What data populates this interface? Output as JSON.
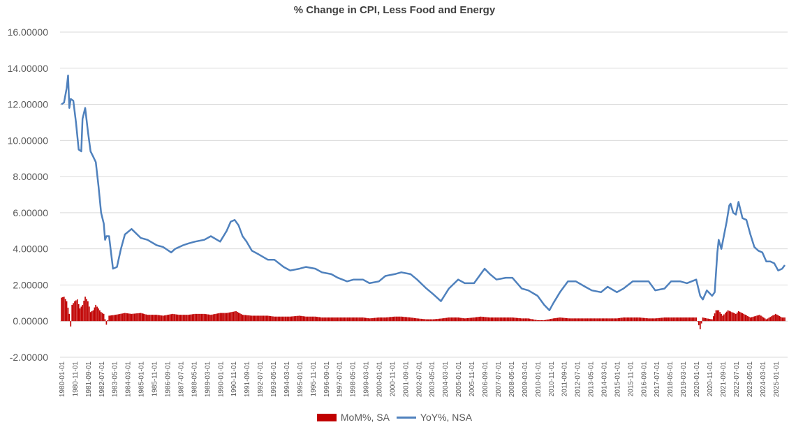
{
  "chart_data": {
    "type": "bar+line",
    "title": "% Change in CPI, Less Food and Energy",
    "xlabel": "",
    "ylabel": "",
    "ylim": [
      -2,
      16
    ],
    "y_ticks": [
      "16.00000",
      "14.00000",
      "12.00000",
      "10.00000",
      "8.00000",
      "6.00000",
      "4.00000",
      "2.00000",
      "0.00000",
      "-2.00000"
    ],
    "grid": true,
    "legend_placement": "bottom",
    "x_tick_labels": [
      "1980-01-01",
      "1980-11-01",
      "1981-09-01",
      "1982-07-01",
      "1983-05-01",
      "1984-03-01",
      "1985-01-01",
      "1985-11-01",
      "1986-09-01",
      "1987-07-01",
      "1988-05-01",
      "1989-03-01",
      "1990-01-01",
      "1990-11-01",
      "1991-09-01",
      "1992-07-01",
      "1993-05-01",
      "1994-03-01",
      "1995-01-01",
      "1995-11-01",
      "1996-09-01",
      "1997-07-01",
      "1998-05-01",
      "1999-03-01",
      "2000-01-01",
      "2000-11-01",
      "2001-09-01",
      "2002-07-01",
      "2003-05-01",
      "2004-03-01",
      "2005-01-01",
      "2005-11-01",
      "2006-09-01",
      "2007-07-01",
      "2008-05-01",
      "2009-03-01",
      "2010-01-01",
      "2010-11-01",
      "2011-09-01",
      "2012-07-01",
      "2013-05-01",
      "2014-03-01",
      "2015-01-01",
      "2015-11-01",
      "2016-09-01",
      "2017-07-01",
      "2018-05-01",
      "2019-03-01",
      "2020-01-01",
      "2020-11-01",
      "2021-09-01",
      "2022-07-01",
      "2023-05-01",
      "2024-03-01",
      "2025-01-01"
    ],
    "series": [
      {
        "name": "MoM%, SA",
        "kind": "bar",
        "color": "#c00000",
        "points": [
          [
            "1980-01-01",
            1.3
          ],
          [
            "1980-03-01",
            1.35
          ],
          [
            "1980-05-01",
            1.1
          ],
          [
            "1980-07-01",
            0.4
          ],
          [
            "1980-08-01",
            -0.3
          ],
          [
            "1980-09-01",
            0.9
          ],
          [
            "1980-11-01",
            1.1
          ],
          [
            "1981-01-01",
            1.2
          ],
          [
            "1981-03-01",
            0.7
          ],
          [
            "1981-05-01",
            0.9
          ],
          [
            "1981-07-01",
            1.35
          ],
          [
            "1981-09-01",
            1.1
          ],
          [
            "1981-11-01",
            0.5
          ],
          [
            "1982-01-01",
            0.6
          ],
          [
            "1982-03-01",
            0.9
          ],
          [
            "1982-05-01",
            0.7
          ],
          [
            "1982-07-01",
            0.5
          ],
          [
            "1982-09-01",
            0.4
          ],
          [
            "1982-11-01",
            -0.2
          ],
          [
            "1983-01-01",
            0.3
          ],
          [
            "1983-06-01",
            0.35
          ],
          [
            "1984-01-01",
            0.45
          ],
          [
            "1984-06-01",
            0.4
          ],
          [
            "1985-01-01",
            0.45
          ],
          [
            "1985-06-01",
            0.35
          ],
          [
            "1986-01-01",
            0.35
          ],
          [
            "1986-06-01",
            0.3
          ],
          [
            "1987-01-01",
            0.4
          ],
          [
            "1987-06-01",
            0.35
          ],
          [
            "1988-01-01",
            0.35
          ],
          [
            "1988-06-01",
            0.4
          ],
          [
            "1989-01-01",
            0.4
          ],
          [
            "1989-06-01",
            0.35
          ],
          [
            "1990-01-01",
            0.45
          ],
          [
            "1990-06-01",
            0.45
          ],
          [
            "1991-01-01",
            0.55
          ],
          [
            "1991-06-01",
            0.35
          ],
          [
            "1992-01-01",
            0.3
          ],
          [
            "1992-06-01",
            0.3
          ],
          [
            "1993-01-01",
            0.3
          ],
          [
            "1993-06-01",
            0.25
          ],
          [
            "1994-01-01",
            0.25
          ],
          [
            "1994-06-01",
            0.25
          ],
          [
            "1995-01-01",
            0.3
          ],
          [
            "1995-06-01",
            0.25
          ],
          [
            "1996-01-01",
            0.25
          ],
          [
            "1996-06-01",
            0.2
          ],
          [
            "1997-01-01",
            0.2
          ],
          [
            "1997-06-01",
            0.2
          ],
          [
            "1998-01-01",
            0.2
          ],
          [
            "1998-06-01",
            0.2
          ],
          [
            "1999-01-01",
            0.2
          ],
          [
            "1999-06-01",
            0.15
          ],
          [
            "2000-01-01",
            0.2
          ],
          [
            "2000-06-01",
            0.2
          ],
          [
            "2001-01-01",
            0.25
          ],
          [
            "2001-06-01",
            0.25
          ],
          [
            "2002-01-01",
            0.2
          ],
          [
            "2002-06-01",
            0.15
          ],
          [
            "2003-01-01",
            0.1
          ],
          [
            "2003-06-01",
            0.1
          ],
          [
            "2004-01-01",
            0.15
          ],
          [
            "2004-06-01",
            0.2
          ],
          [
            "2005-01-01",
            0.2
          ],
          [
            "2005-06-01",
            0.15
          ],
          [
            "2006-01-01",
            0.2
          ],
          [
            "2006-06-01",
            0.25
          ],
          [
            "2007-01-01",
            0.2
          ],
          [
            "2007-06-01",
            0.2
          ],
          [
            "2008-01-01",
            0.2
          ],
          [
            "2008-06-01",
            0.2
          ],
          [
            "2009-01-01",
            0.15
          ],
          [
            "2009-06-01",
            0.15
          ],
          [
            "2010-01-01",
            0.05
          ],
          [
            "2010-06-01",
            0.05
          ],
          [
            "2011-01-01",
            0.15
          ],
          [
            "2011-06-01",
            0.2
          ],
          [
            "2012-01-01",
            0.15
          ],
          [
            "2012-06-01",
            0.15
          ],
          [
            "2013-01-01",
            0.15
          ],
          [
            "2013-06-01",
            0.15
          ],
          [
            "2014-01-01",
            0.15
          ],
          [
            "2014-06-01",
            0.15
          ],
          [
            "2015-01-01",
            0.15
          ],
          [
            "2015-06-01",
            0.2
          ],
          [
            "2016-01-01",
            0.2
          ],
          [
            "2016-06-01",
            0.2
          ],
          [
            "2017-01-01",
            0.15
          ],
          [
            "2017-06-01",
            0.15
          ],
          [
            "2018-01-01",
            0.2
          ],
          [
            "2018-06-01",
            0.2
          ],
          [
            "2019-01-01",
            0.2
          ],
          [
            "2019-06-01",
            0.2
          ],
          [
            "2020-01-01",
            0.2
          ],
          [
            "2020-04-01",
            -0.45
          ],
          [
            "2020-06-01",
            0.2
          ],
          [
            "2020-09-01",
            0.15
          ],
          [
            "2021-01-01",
            0.1
          ],
          [
            "2021-04-01",
            0.6
          ],
          [
            "2021-06-01",
            0.6
          ],
          [
            "2021-09-01",
            0.3
          ],
          [
            "2022-01-01",
            0.6
          ],
          [
            "2022-04-01",
            0.5
          ],
          [
            "2022-07-01",
            0.4
          ],
          [
            "2022-09-01",
            0.55
          ],
          [
            "2023-01-01",
            0.4
          ],
          [
            "2023-06-01",
            0.2
          ],
          [
            "2024-01-01",
            0.35
          ],
          [
            "2024-06-01",
            0.1
          ],
          [
            "2025-01-01",
            0.4
          ],
          [
            "2025-06-01",
            0.2
          ]
        ]
      },
      {
        "name": "YoY%, NSA",
        "kind": "line",
        "color": "#4f81bd",
        "points": [
          [
            "1980-01-01",
            12.0
          ],
          [
            "1980-03-01",
            12.1
          ],
          [
            "1980-05-01",
            12.9
          ],
          [
            "1980-06-01",
            13.6
          ],
          [
            "1980-07-01",
            11.8
          ],
          [
            "1980-08-01",
            12.3
          ],
          [
            "1980-10-01",
            12.2
          ],
          [
            "1980-12-01",
            11.0
          ],
          [
            "1981-02-01",
            9.5
          ],
          [
            "1981-04-01",
            9.4
          ],
          [
            "1981-05-01",
            11.2
          ],
          [
            "1981-07-01",
            11.8
          ],
          [
            "1981-09-01",
            10.5
          ],
          [
            "1981-11-01",
            9.4
          ],
          [
            "1982-01-01",
            9.1
          ],
          [
            "1982-03-01",
            8.8
          ],
          [
            "1982-05-01",
            7.5
          ],
          [
            "1982-07-01",
            6.0
          ],
          [
            "1982-09-01",
            5.4
          ],
          [
            "1982-10-01",
            4.5
          ],
          [
            "1982-11-01",
            4.7
          ],
          [
            "1983-01-01",
            4.7
          ],
          [
            "1983-04-01",
            2.9
          ],
          [
            "1983-07-01",
            3.0
          ],
          [
            "1983-10-01",
            4.0
          ],
          [
            "1984-01-01",
            4.8
          ],
          [
            "1984-06-01",
            5.1
          ],
          [
            "1985-01-01",
            4.6
          ],
          [
            "1985-06-01",
            4.5
          ],
          [
            "1986-01-01",
            4.2
          ],
          [
            "1986-06-01",
            4.1
          ],
          [
            "1986-12-01",
            3.8
          ],
          [
            "1987-03-01",
            4.0
          ],
          [
            "1987-06-01",
            4.1
          ],
          [
            "1987-09-01",
            4.2
          ],
          [
            "1988-01-01",
            4.3
          ],
          [
            "1988-06-01",
            4.4
          ],
          [
            "1989-01-01",
            4.5
          ],
          [
            "1989-06-01",
            4.7
          ],
          [
            "1990-01-01",
            4.4
          ],
          [
            "1990-06-01",
            5.0
          ],
          [
            "1990-09-01",
            5.5
          ],
          [
            "1990-12-01",
            5.6
          ],
          [
            "1991-03-01",
            5.3
          ],
          [
            "1991-06-01",
            4.7
          ],
          [
            "1991-09-01",
            4.4
          ],
          [
            "1992-01-01",
            3.9
          ],
          [
            "1992-06-01",
            3.7
          ],
          [
            "1993-01-01",
            3.4
          ],
          [
            "1993-06-01",
            3.4
          ],
          [
            "1994-01-01",
            3.0
          ],
          [
            "1994-06-01",
            2.8
          ],
          [
            "1995-01-01",
            2.9
          ],
          [
            "1995-06-01",
            3.0
          ],
          [
            "1996-01-01",
            2.9
          ],
          [
            "1996-06-01",
            2.7
          ],
          [
            "1997-01-01",
            2.6
          ],
          [
            "1997-06-01",
            2.4
          ],
          [
            "1998-01-01",
            2.2
          ],
          [
            "1998-06-01",
            2.3
          ],
          [
            "1999-01-01",
            2.3
          ],
          [
            "1999-06-01",
            2.1
          ],
          [
            "2000-01-01",
            2.2
          ],
          [
            "2000-06-01",
            2.5
          ],
          [
            "2001-01-01",
            2.6
          ],
          [
            "2001-06-01",
            2.7
          ],
          [
            "2002-01-01",
            2.6
          ],
          [
            "2002-06-01",
            2.3
          ],
          [
            "2003-01-01",
            1.8
          ],
          [
            "2003-06-01",
            1.5
          ],
          [
            "2003-12-01",
            1.1
          ],
          [
            "2004-06-01",
            1.8
          ],
          [
            "2005-01-01",
            2.3
          ],
          [
            "2005-06-01",
            2.1
          ],
          [
            "2006-01-01",
            2.1
          ],
          [
            "2006-06-01",
            2.6
          ],
          [
            "2006-09-01",
            2.9
          ],
          [
            "2007-01-01",
            2.6
          ],
          [
            "2007-06-01",
            2.3
          ],
          [
            "2008-01-01",
            2.4
          ],
          [
            "2008-06-01",
            2.4
          ],
          [
            "2009-01-01",
            1.8
          ],
          [
            "2009-06-01",
            1.7
          ],
          [
            "2010-01-01",
            1.4
          ],
          [
            "2010-06-01",
            0.9
          ],
          [
            "2010-10-01",
            0.6
          ],
          [
            "2011-01-01",
            1.0
          ],
          [
            "2011-06-01",
            1.6
          ],
          [
            "2011-12-01",
            2.2
          ],
          [
            "2012-06-01",
            2.2
          ],
          [
            "2013-01-01",
            1.9
          ],
          [
            "2013-06-01",
            1.7
          ],
          [
            "2014-01-01",
            1.6
          ],
          [
            "2014-06-01",
            1.9
          ],
          [
            "2015-01-01",
            1.6
          ],
          [
            "2015-06-01",
            1.8
          ],
          [
            "2016-01-01",
            2.2
          ],
          [
            "2016-06-01",
            2.2
          ],
          [
            "2017-01-01",
            2.2
          ],
          [
            "2017-06-01",
            1.7
          ],
          [
            "2018-01-01",
            1.8
          ],
          [
            "2018-06-01",
            2.2
          ],
          [
            "2019-01-01",
            2.2
          ],
          [
            "2019-06-01",
            2.1
          ],
          [
            "2020-01-01",
            2.3
          ],
          [
            "2020-04-01",
            1.4
          ],
          [
            "2020-06-01",
            1.2
          ],
          [
            "2020-09-01",
            1.7
          ],
          [
            "2021-01-01",
            1.4
          ],
          [
            "2021-03-01",
            1.6
          ],
          [
            "2021-05-01",
            3.8
          ],
          [
            "2021-06-01",
            4.5
          ],
          [
            "2021-08-01",
            4.0
          ],
          [
            "2021-12-01",
            5.5
          ],
          [
            "2022-02-01",
            6.4
          ],
          [
            "2022-03-01",
            6.5
          ],
          [
            "2022-05-01",
            6.0
          ],
          [
            "2022-07-01",
            5.9
          ],
          [
            "2022-09-01",
            6.6
          ],
          [
            "2022-12-01",
            5.7
          ],
          [
            "2023-03-01",
            5.6
          ],
          [
            "2023-06-01",
            4.8
          ],
          [
            "2023-09-01",
            4.1
          ],
          [
            "2023-12-01",
            3.9
          ],
          [
            "2024-03-01",
            3.8
          ],
          [
            "2024-06-01",
            3.3
          ],
          [
            "2024-09-01",
            3.3
          ],
          [
            "2024-12-01",
            3.2
          ],
          [
            "2025-03-01",
            2.8
          ],
          [
            "2025-06-01",
            2.9
          ],
          [
            "2025-08-01",
            3.1
          ]
        ]
      }
    ]
  }
}
